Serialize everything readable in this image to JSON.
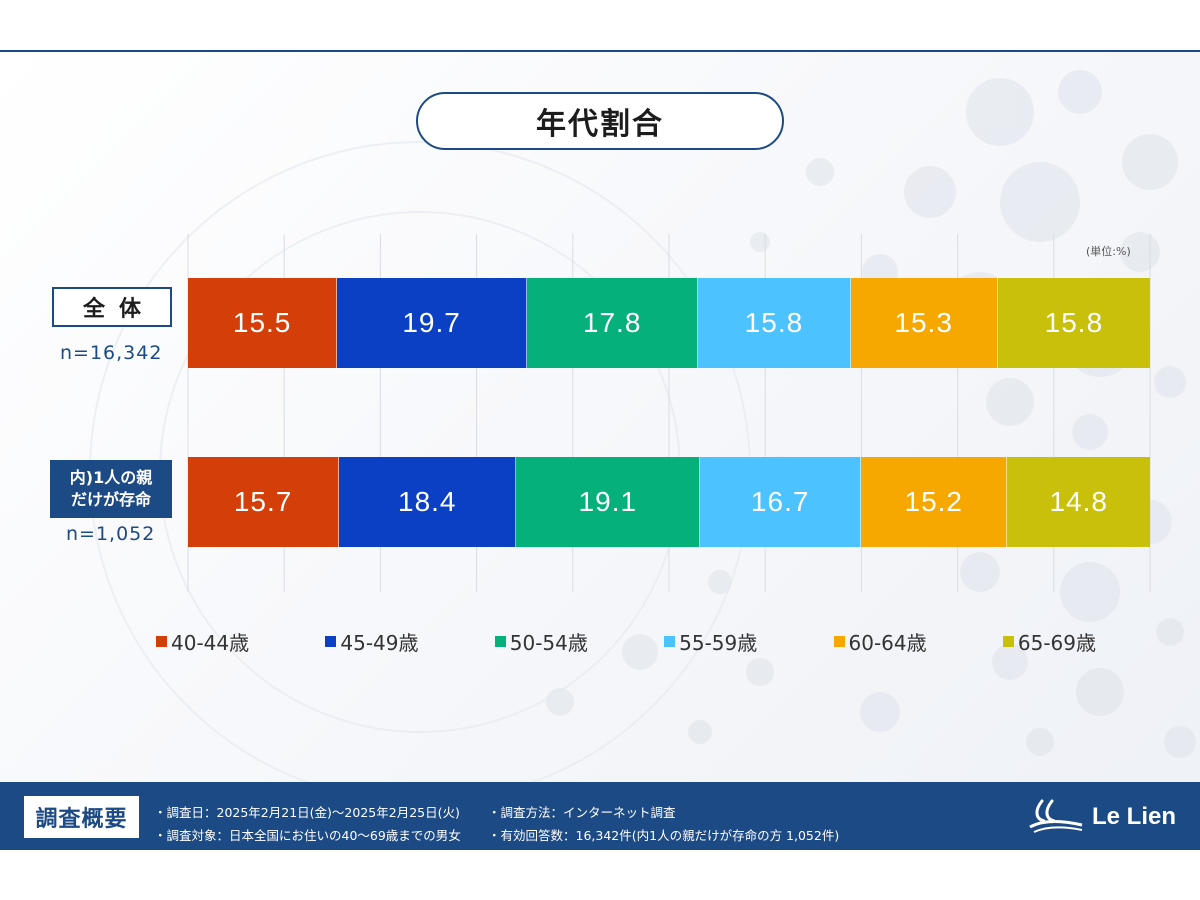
{
  "title": "年代割合",
  "unit_note": "(単位:%)",
  "rows": [
    {
      "label": "全体",
      "n": "n=16,342"
    },
    {
      "label_line1": "内)1人の親",
      "label_line2": "だけが存命",
      "n": "n=1,052"
    }
  ],
  "chart_data": {
    "type": "bar",
    "orientation": "horizontal",
    "stacked": true,
    "categories": [
      "全体",
      "内)1人の親だけが存命"
    ],
    "series": [
      {
        "name": "40-44歳",
        "color": "#d43f09",
        "values": [
          15.5,
          15.7
        ],
        "labels": [
          "15.5",
          "15.7"
        ]
      },
      {
        "name": "45-49歳",
        "color": "#0c40c4",
        "values": [
          19.7,
          18.4
        ],
        "labels": [
          "19.7",
          "18.4"
        ]
      },
      {
        "name": "50-54歳",
        "color": "#05b07a",
        "values": [
          17.8,
          19.1
        ],
        "labels": [
          "17.8",
          "19.1"
        ]
      },
      {
        "name": "55-59歳",
        "color": "#4cc3ff",
        "values": [
          15.8,
          16.7
        ],
        "labels": [
          "15.8",
          "16.7"
        ]
      },
      {
        "name": "60-64歳",
        "color": "#f6a800",
        "values": [
          15.3,
          15.2
        ],
        "labels": [
          "15.3",
          "15.2"
        ]
      },
      {
        "name": "65-69歳",
        "color": "#c8c00a",
        "values": [
          15.8,
          14.8
        ],
        "labels": [
          "15.8",
          "14.8"
        ]
      }
    ],
    "title": "年代割合",
    "xlim": [
      0,
      100
    ],
    "grid": true,
    "legend": "bottom"
  },
  "footer": {
    "tag": "調査概要",
    "date": "・調査日：2025年2月21日(金)～2025年2月25日(火)",
    "target": "・調査対象：日本全国にお住いの40～69歳までの男女",
    "method": "・調査方法：インターネット調査",
    "count": "・有効回答数：16,342件(内1人の親だけが存命の方 1,052件)",
    "brand": "Le Lien"
  },
  "colors": {
    "navy": "#1c4a85",
    "white": "#ffffff"
  }
}
